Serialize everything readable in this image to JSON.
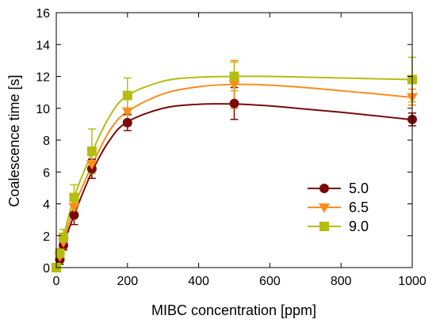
{
  "chart_data": {
    "type": "line",
    "xlabel": "MIBC concentration [ppm]",
    "ylabel": "Coalescence time [s]",
    "xlim": [
      0,
      1000
    ],
    "ylim": [
      0,
      16
    ],
    "x_ticks": [
      0,
      200,
      400,
      600,
      800,
      1000
    ],
    "y_ticks": [
      0,
      2,
      4,
      6,
      8,
      10,
      12,
      14,
      16
    ],
    "x_tick_labels": [
      "0",
      "200",
      "400",
      "600",
      "800",
      "1000"
    ],
    "y_tick_labels": [
      "0",
      "2",
      "4",
      "6",
      "8",
      "10",
      "12",
      "14",
      "16"
    ],
    "grid": false,
    "legend_position": "lower-right",
    "x": [
      0,
      10,
      20,
      50,
      100,
      200,
      500,
      1000
    ],
    "series": [
      {
        "name": "5.0",
        "marker": "circle",
        "color": "#7a0a0a",
        "values": [
          0.0,
          0.5,
          1.4,
          3.3,
          6.2,
          9.1,
          10.3,
          9.3
        ],
        "errors": [
          0.1,
          0.3,
          0.3,
          0.6,
          0.6,
          0.5,
          1.0,
          0.4
        ]
      },
      {
        "name": "6.5",
        "marker": "triangle-down",
        "color": "#ff8c1a",
        "values": [
          0.0,
          0.7,
          1.6,
          3.8,
          6.5,
          9.8,
          11.5,
          10.7
        ],
        "errors": [
          0.1,
          0.3,
          0.4,
          0.7,
          0.6,
          0.9,
          1.5,
          0.5
        ]
      },
      {
        "name": "9.0",
        "marker": "square",
        "color": "#b5bd12",
        "values": [
          0.0,
          0.9,
          1.9,
          4.4,
          7.3,
          10.8,
          12.0,
          11.8
        ],
        "errors": [
          0.1,
          0.3,
          0.5,
          0.8,
          1.4,
          1.1,
          0.9,
          1.4
        ]
      }
    ],
    "fit_curves": [
      {
        "series": "5.0",
        "x": [
          0,
          20,
          50,
          100,
          150,
          200,
          300,
          400,
          500,
          600,
          700,
          800,
          900,
          1000
        ],
        "y": [
          0,
          1.4,
          3.3,
          6.0,
          8.0,
          9.15,
          10.0,
          10.25,
          10.27,
          10.15,
          9.95,
          9.75,
          9.52,
          9.28
        ]
      },
      {
        "series": "6.5",
        "x": [
          0,
          20,
          50,
          100,
          150,
          200,
          300,
          400,
          500,
          600,
          700,
          800,
          900,
          1000
        ],
        "y": [
          0,
          1.6,
          3.8,
          6.4,
          8.6,
          9.8,
          10.9,
          11.35,
          11.5,
          11.45,
          11.3,
          11.1,
          10.9,
          10.68
        ]
      },
      {
        "series": "9.0",
        "x": [
          0,
          20,
          50,
          100,
          150,
          200,
          300,
          400,
          500,
          600,
          700,
          800,
          900,
          1000
        ],
        "y": [
          0,
          1.9,
          4.4,
          7.2,
          9.5,
          10.8,
          11.7,
          11.95,
          12.0,
          12.0,
          11.95,
          11.9,
          11.85,
          11.8
        ]
      }
    ]
  }
}
